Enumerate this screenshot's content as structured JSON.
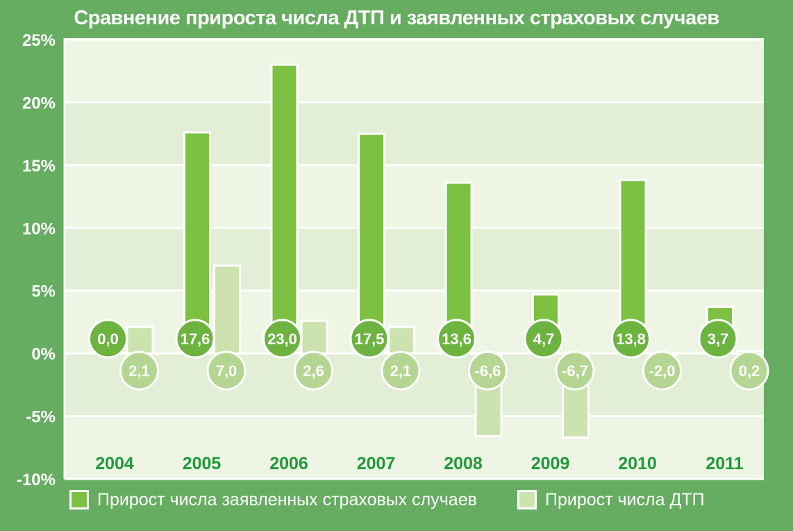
{
  "title": "Сравнение прироста числа ДТП и заявленных страховых случаев",
  "colors": {
    "background": "#66ad62",
    "plot_band_light": "#eef5e4",
    "plot_band_dark": "#e2eed5",
    "series_insurance": "#7cc142",
    "series_accidents": "#cce3b0",
    "bubble_insurance": "#6cb33f",
    "bubble_accidents": "#b5d692",
    "xtick_text": "#1f9a3a"
  },
  "chart_data": {
    "type": "bar",
    "categories": [
      "2004",
      "2005",
      "2006",
      "2007",
      "2008",
      "2009",
      "2010",
      "2011"
    ],
    "series": [
      {
        "name": "Прирост числа заявленных страховых случаев",
        "values": [
          0.0,
          17.6,
          23.0,
          17.5,
          13.6,
          4.7,
          13.8,
          3.7
        ],
        "labels": [
          "0,0",
          "17,6",
          "23,0",
          "17,5",
          "13,6",
          "4,7",
          "13,8",
          "3,7"
        ]
      },
      {
        "name": "Прирост числа ДТП",
        "values": [
          2.1,
          7.0,
          2.6,
          2.1,
          -6.6,
          -6.7,
          -2.0,
          0.2
        ],
        "labels": [
          "2,1",
          "7,0",
          "2,6",
          "2,1",
          "-6,6",
          "-6,7",
          "-2,0",
          "0,2"
        ]
      }
    ],
    "ylim": [
      -10,
      25
    ],
    "y_ticks": [
      25,
      20,
      15,
      10,
      5,
      0,
      -5,
      -10
    ],
    "y_tick_labels": [
      "25%",
      "20%",
      "15%",
      "10%",
      "5%",
      "0%",
      "-5%",
      "-10%"
    ],
    "grid": true,
    "legend_position": "bottom"
  }
}
